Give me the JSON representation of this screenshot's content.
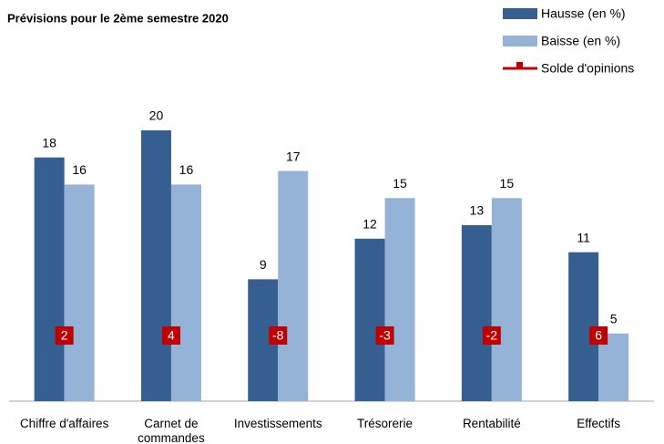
{
  "chart_data": {
    "type": "bar",
    "title": "Prévisions pour le 2ème semestre 2020",
    "categories": [
      "Chiffre d'affaires",
      "Carnet de commandes",
      "Investissements",
      "Trésorerie",
      "Rentabilité",
      "Effectifs"
    ],
    "series": [
      {
        "name": "Hausse (en %)",
        "color": "#365f91",
        "values": [
          18,
          20,
          9,
          12,
          13,
          11
        ]
      },
      {
        "name": "Baisse (en %)",
        "color": "#95b3d7",
        "values": [
          16,
          16,
          17,
          15,
          15,
          5
        ]
      },
      {
        "name": "Solde d'opinions",
        "color": "#c00000",
        "values": [
          2,
          4,
          -8,
          -3,
          -2,
          6
        ]
      }
    ]
  }
}
